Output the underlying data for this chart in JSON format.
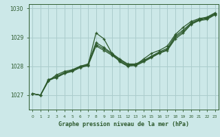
{
  "title": "Graphe pression niveau de la mer (hPa)",
  "background_color": "#cce8e8",
  "grid_color": "#aacccc",
  "line_color": "#2d5a2d",
  "marker_color": "#2d5a2d",
  "xlim": [
    -0.5,
    23.5
  ],
  "ylim": [
    1026.5,
    1030.15
  ],
  "yticks": [
    1027,
    1028,
    1029,
    1030
  ],
  "xticks": [
    0,
    1,
    2,
    3,
    4,
    5,
    6,
    7,
    8,
    9,
    10,
    11,
    12,
    13,
    14,
    15,
    16,
    17,
    18,
    19,
    20,
    21,
    22,
    23
  ],
  "series": [
    [
      1027.05,
      1027.0,
      1027.55,
      1027.6,
      1027.75,
      1027.85,
      1028.0,
      1028.05,
      1029.15,
      1028.95,
      1028.45,
      1028.15,
      1028.0,
      1028.05,
      1028.25,
      1028.45,
      1028.55,
      1028.7,
      1029.1,
      1029.35,
      1029.55,
      1029.65,
      1029.7,
      1029.85
    ],
    [
      1027.05,
      1027.0,
      1027.5,
      1027.7,
      1027.82,
      1027.88,
      1028.0,
      1028.08,
      1028.82,
      1028.65,
      1028.45,
      1028.25,
      1028.08,
      1028.08,
      1028.2,
      1028.35,
      1028.5,
      1028.62,
      1029.05,
      1029.25,
      1029.5,
      1029.62,
      1029.68,
      1029.82
    ],
    [
      1027.05,
      1027.0,
      1027.5,
      1027.65,
      1027.78,
      1027.85,
      1027.98,
      1028.05,
      1028.75,
      1028.6,
      1028.42,
      1028.22,
      1028.05,
      1028.05,
      1028.18,
      1028.32,
      1028.47,
      1028.58,
      1029.0,
      1029.2,
      1029.47,
      1029.6,
      1029.65,
      1029.8
    ],
    [
      1027.05,
      1027.0,
      1027.5,
      1027.62,
      1027.75,
      1027.82,
      1027.95,
      1028.02,
      1028.7,
      1028.55,
      1028.38,
      1028.18,
      1028.02,
      1028.02,
      1028.15,
      1028.3,
      1028.45,
      1028.55,
      1028.95,
      1029.15,
      1029.45,
      1029.58,
      1029.62,
      1029.78
    ]
  ]
}
